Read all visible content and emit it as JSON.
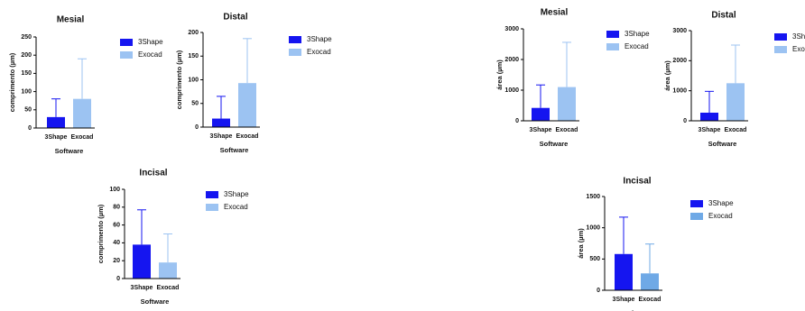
{
  "chart_data": [
    {
      "type": "bar",
      "title": "Mesial",
      "ylabel": "comprimento (µm)",
      "xlabel": "Software",
      "categories": [
        "3Shape",
        "Exocad"
      ],
      "values": [
        30,
        80
      ],
      "errors": [
        50,
        110
      ],
      "colors": [
        "#1515f0",
        "#9cc3f2"
      ],
      "ylim": [
        0,
        250
      ],
      "yticks": [
        0,
        50,
        100,
        150,
        200,
        250
      ]
    },
    {
      "type": "bar",
      "title": "Distal",
      "ylabel": "comprimento (µm)",
      "xlabel": "Software",
      "categories": [
        "3Shape",
        "Exocad"
      ],
      "values": [
        18,
        93
      ],
      "errors": [
        47,
        94
      ],
      "colors": [
        "#1515f0",
        "#9cc3f2"
      ],
      "ylim": [
        0,
        200
      ],
      "yticks": [
        0,
        50,
        100,
        150,
        200
      ]
    },
    {
      "type": "bar",
      "title": "Incisal",
      "ylabel": "comprimento (µm)",
      "xlabel": "Software",
      "categories": [
        "3Shape",
        "Exocad"
      ],
      "values": [
        38,
        18
      ],
      "errors": [
        39,
        32
      ],
      "colors": [
        "#1515f0",
        "#9cc3f2"
      ],
      "ylim": [
        0,
        100
      ],
      "yticks": [
        0,
        20,
        40,
        60,
        80,
        100
      ]
    },
    {
      "type": "bar",
      "title": "Mesial",
      "ylabel": "área (µm)",
      "xlabel": "Software",
      "categories": [
        "3Shape",
        "Exocad"
      ],
      "values": [
        420,
        1100
      ],
      "errors": [
        750,
        1460
      ],
      "colors": [
        "#1515f0",
        "#9cc3f2"
      ],
      "ylim": [
        0,
        3000
      ],
      "yticks": [
        0,
        1000,
        2000,
        3000
      ]
    },
    {
      "type": "bar",
      "title": "Distal",
      "ylabel": "área (µm)",
      "xlabel": "Software",
      "categories": [
        "3Shape",
        "Exocad"
      ],
      "values": [
        270,
        1250
      ],
      "errors": [
        710,
        1270
      ],
      "colors": [
        "#1515f0",
        "#9cc3f2"
      ],
      "ylim": [
        0,
        3000
      ],
      "yticks": [
        0,
        1000,
        2000,
        3000
      ]
    },
    {
      "type": "bar",
      "title": "Incisal",
      "ylabel": "área (µm)",
      "xlabel": "Software",
      "categories": [
        "3Shape",
        "Exocad"
      ],
      "values": [
        580,
        270
      ],
      "errors": [
        590,
        470
      ],
      "colors": [
        "#1515f0",
        "#6fa9e6"
      ],
      "ylim": [
        0,
        1500
      ],
      "yticks": [
        0,
        500,
        1000,
        1500
      ]
    }
  ]
}
